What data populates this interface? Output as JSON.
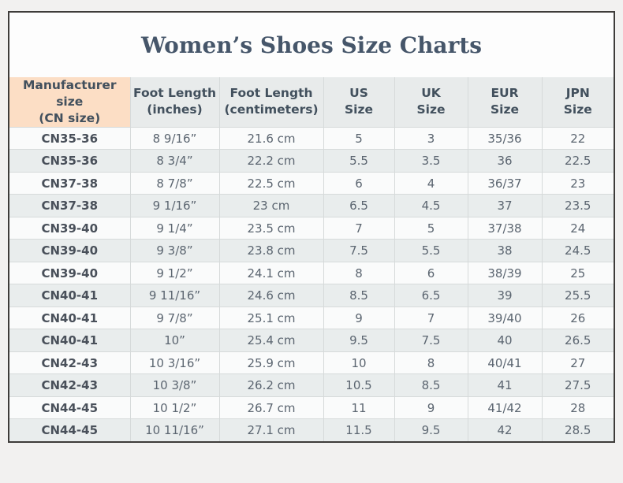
{
  "page": {
    "title": "Women’s Shoes Size Charts"
  },
  "chart_data": {
    "type": "table",
    "title": "Women’s Shoes Size Charts",
    "columns": [
      "Manufacturer size\n(CN size)",
      "Foot Length\n(inches)",
      "Foot Length\n(centimeters)",
      "US\nSize",
      "UK\nSize",
      "EUR\nSize",
      "JPN\nSize"
    ],
    "rows": [
      [
        "CN35-36",
        "8 9/16”",
        "21.6 cm",
        "5",
        "3",
        "35/36",
        "22"
      ],
      [
        "CN35-36",
        "8 3/4”",
        "22.2 cm",
        "5.5",
        "3.5",
        "36",
        "22.5"
      ],
      [
        "CN37-38",
        "8 7/8”",
        "22.5 cm",
        "6",
        "4",
        "36/37",
        "23"
      ],
      [
        "CN37-38",
        "9 1/16”",
        "23 cm",
        "6.5",
        "4.5",
        "37",
        "23.5"
      ],
      [
        "CN39-40",
        "9 1/4”",
        "23.5 cm",
        "7",
        "5",
        "37/38",
        "24"
      ],
      [
        "CN39-40",
        "9 3/8”",
        "23.8 cm",
        "7.5",
        "5.5",
        "38",
        "24.5"
      ],
      [
        "CN39-40",
        "9 1/2”",
        "24.1 cm",
        "8",
        "6",
        "38/39",
        "25"
      ],
      [
        "CN40-41",
        "9 11/16”",
        "24.6 cm",
        "8.5",
        "6.5",
        "39",
        "25.5"
      ],
      [
        "CN40-41",
        "9 7/8”",
        "25.1 cm",
        "9",
        "7",
        "39/40",
        "26"
      ],
      [
        "CN40-41",
        "10”",
        "25.4 cm",
        "9.5",
        "7.5",
        "40",
        "26.5"
      ],
      [
        "CN42-43",
        "10 3/16”",
        "25.9 cm",
        "10",
        "8",
        "40/41",
        "27"
      ],
      [
        "CN42-43",
        "10 3/8”",
        "26.2 cm",
        "10.5",
        "8.5",
        "41",
        "27.5"
      ],
      [
        "CN44-45",
        "10 1/2”",
        "26.7 cm",
        "11",
        "9",
        "41/42",
        "28"
      ],
      [
        "CN44-45",
        "10 11/16”",
        "27.1 cm",
        "11.5",
        "9.5",
        "42",
        "28.5"
      ]
    ]
  },
  "colors": {
    "page_background": "#f2f1f0",
    "card_background": "#fdfdfd",
    "card_border": "#3e3c3a",
    "title_text": "#46566a",
    "header_peach": "#fcdec5",
    "header_gray": "#e8ebeb",
    "header_text": "#42505d",
    "first_column_peach": "#fcdfc7",
    "first_column_text": "#49505a",
    "row_odd": "#fafbfb",
    "row_even": "#e9eded",
    "data_text": "#5b6570",
    "cell_border": "#d6dada"
  }
}
